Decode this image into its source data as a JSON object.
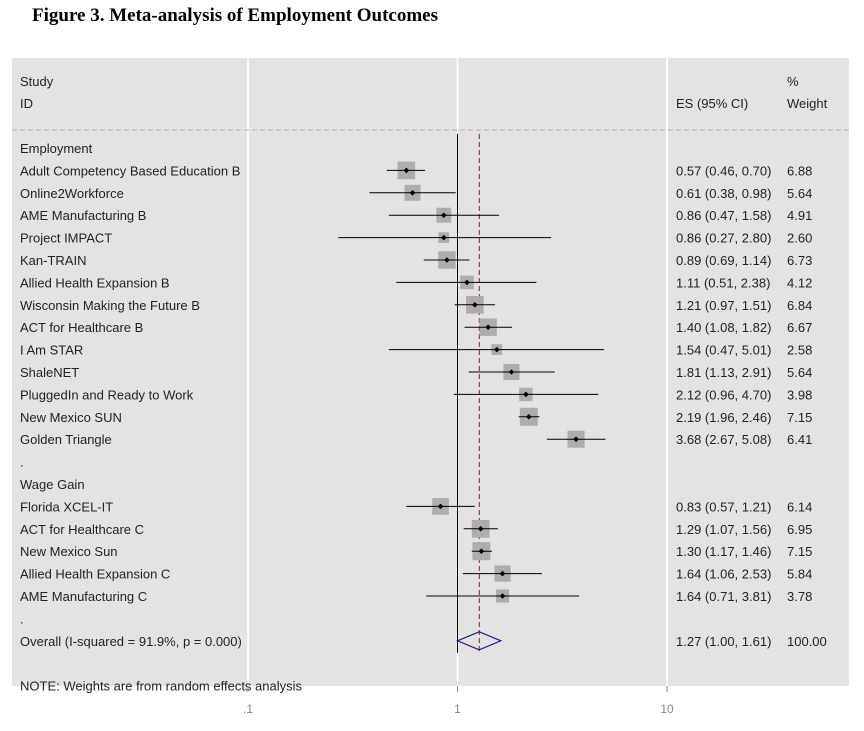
{
  "figure_title": "Figure 3. Meta-analysis of Employment Outcomes",
  "colors": {
    "panel": "#e3e3e3",
    "square": "#adadad",
    "ref_line": "#8b1a1a",
    "diamond": "#1f1f8f"
  },
  "chart_data": {
    "type": "forest",
    "title": "Figure 3. Meta-analysis of Employment Outcomes",
    "header": {
      "study": "Study",
      "id": "ID",
      "es": "ES (95% CI)",
      "pct": "%",
      "weight": "Weight"
    },
    "x_scale": "log",
    "xlim": [
      0.1,
      10
    ],
    "x_ticks": [
      {
        "value": 0.1,
        "label": ".1"
      },
      {
        "value": 1,
        "label": "1"
      },
      {
        "value": 10,
        "label": "10"
      }
    ],
    "null_line": 1,
    "pooled_line": 1.27,
    "rows": [
      {
        "kind": "group",
        "label": "Employment"
      },
      {
        "kind": "study",
        "label": "Adult Competency Based Education B",
        "es": 0.57,
        "lo": 0.46,
        "hi": 0.7,
        "ci_text": "0.57 (0.46, 0.70)",
        "weight": 6.88,
        "weight_text": "6.88"
      },
      {
        "kind": "study",
        "label": "Online2Workforce",
        "es": 0.61,
        "lo": 0.38,
        "hi": 0.98,
        "ci_text": "0.61 (0.38, 0.98)",
        "weight": 5.64,
        "weight_text": "5.64"
      },
      {
        "kind": "study",
        "label": "AME Manufacturing B",
        "es": 0.86,
        "lo": 0.47,
        "hi": 1.58,
        "ci_text": "0.86 (0.47, 1.58)",
        "weight": 4.91,
        "weight_text": "4.91"
      },
      {
        "kind": "study",
        "label": "Project IMPACT",
        "es": 0.86,
        "lo": 0.27,
        "hi": 2.8,
        "ci_text": "0.86 (0.27, 2.80)",
        "weight": 2.6,
        "weight_text": "2.60"
      },
      {
        "kind": "study",
        "label": "Kan-TRAIN",
        "es": 0.89,
        "lo": 0.69,
        "hi": 1.14,
        "ci_text": "0.89 (0.69, 1.14)",
        "weight": 6.73,
        "weight_text": "6.73"
      },
      {
        "kind": "study",
        "label": "Allied Health Expansion B",
        "es": 1.11,
        "lo": 0.51,
        "hi": 2.38,
        "ci_text": "1.11 (0.51, 2.38)",
        "weight": 4.12,
        "weight_text": "4.12"
      },
      {
        "kind": "study",
        "label": "Wisconsin Making the Future B",
        "es": 1.21,
        "lo": 0.97,
        "hi": 1.51,
        "ci_text": "1.21 (0.97, 1.51)",
        "weight": 6.84,
        "weight_text": "6.84"
      },
      {
        "kind": "study",
        "label": "ACT for Healthcare B",
        "es": 1.4,
        "lo": 1.08,
        "hi": 1.82,
        "ci_text": "1.40 (1.08, 1.82)",
        "weight": 6.67,
        "weight_text": "6.67"
      },
      {
        "kind": "study",
        "label": "I Am STAR",
        "es": 1.54,
        "lo": 0.47,
        "hi": 5.01,
        "ci_text": "1.54 (0.47, 5.01)",
        "weight": 2.58,
        "weight_text": "2.58"
      },
      {
        "kind": "study",
        "label": "ShaleNET",
        "es": 1.81,
        "lo": 1.13,
        "hi": 2.91,
        "ci_text": "1.81 (1.13, 2.91)",
        "weight": 5.64,
        "weight_text": "5.64"
      },
      {
        "kind": "study",
        "label": "PluggedIn and Ready to Work",
        "es": 2.12,
        "lo": 0.96,
        "hi": 4.7,
        "ci_text": "2.12 (0.96, 4.70)",
        "weight": 3.98,
        "weight_text": "3.98"
      },
      {
        "kind": "study",
        "label": "New Mexico SUN",
        "es": 2.19,
        "lo": 1.96,
        "hi": 2.46,
        "ci_text": "2.19 (1.96, 2.46)",
        "weight": 7.15,
        "weight_text": "7.15"
      },
      {
        "kind": "study",
        "label": "Golden Triangle",
        "es": 3.68,
        "lo": 2.67,
        "hi": 5.08,
        "ci_text": "3.68 (2.67, 5.08)",
        "weight": 6.41,
        "weight_text": "6.41"
      },
      {
        "kind": "spacer",
        "label": "."
      },
      {
        "kind": "group",
        "label": "Wage Gain"
      },
      {
        "kind": "study",
        "label": "Florida XCEL-IT",
        "es": 0.83,
        "lo": 0.57,
        "hi": 1.21,
        "ci_text": "0.83 (0.57, 1.21)",
        "weight": 6.14,
        "weight_text": "6.14"
      },
      {
        "kind": "study",
        "label": "ACT for Healthcare C",
        "es": 1.29,
        "lo": 1.07,
        "hi": 1.56,
        "ci_text": "1.29 (1.07, 1.56)",
        "weight": 6.95,
        "weight_text": "6.95"
      },
      {
        "kind": "study",
        "label": "New Mexico Sun",
        "es": 1.3,
        "lo": 1.17,
        "hi": 1.46,
        "ci_text": "1.30 (1.17, 1.46)",
        "weight": 7.15,
        "weight_text": "7.15"
      },
      {
        "kind": "study",
        "label": "Allied Health Expansion C",
        "es": 1.64,
        "lo": 1.06,
        "hi": 2.53,
        "ci_text": "1.64 (1.06, 2.53)",
        "weight": 5.84,
        "weight_text": "5.84"
      },
      {
        "kind": "study",
        "label": "AME Manufacturing C",
        "es": 1.64,
        "lo": 0.71,
        "hi": 3.81,
        "ci_text": "1.64 (0.71, 3.81)",
        "weight": 3.78,
        "weight_text": "3.78"
      },
      {
        "kind": "spacer",
        "label": "."
      },
      {
        "kind": "overall",
        "label": "Overall  (I-squared = 91.9%, p = 0.000)",
        "es": 1.27,
        "lo": 1.0,
        "hi": 1.61,
        "ci_text": "1.27 (1.00, 1.61)",
        "weight": 100.0,
        "weight_text": "100.00"
      },
      {
        "kind": "blank"
      },
      {
        "kind": "note",
        "label": "NOTE: Weights are from random effects analysis"
      }
    ]
  }
}
